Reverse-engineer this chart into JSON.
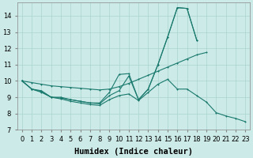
{
  "xlabel": "Humidex (Indice chaleur)",
  "background_color": "#cceae7",
  "grid_color": "#aad4d0",
  "line_color": "#1a7a6e",
  "x_values": [
    0,
    1,
    2,
    3,
    4,
    5,
    6,
    7,
    8,
    9,
    10,
    11,
    12,
    13,
    14,
    15,
    16,
    17,
    18,
    19,
    20,
    21,
    22,
    23
  ],
  "series_volatile": [
    10.0,
    9.5,
    9.4,
    9.0,
    9.0,
    8.85,
    8.75,
    8.65,
    8.65,
    9.3,
    10.4,
    10.45,
    8.85,
    9.5,
    11.0,
    12.7,
    14.5,
    14.45,
    12.5,
    null,
    null,
    null,
    null,
    null
  ],
  "series_mid": [
    10.0,
    9.5,
    9.35,
    9.0,
    8.95,
    8.85,
    8.75,
    8.65,
    8.6,
    9.1,
    9.4,
    10.3,
    8.85,
    9.5,
    11.0,
    12.7,
    14.5,
    14.45,
    12.5,
    null,
    null,
    null,
    null,
    null
  ],
  "series_bottom": [
    10.0,
    9.5,
    9.3,
    9.0,
    8.9,
    8.75,
    8.65,
    8.55,
    8.5,
    8.85,
    9.1,
    9.2,
    8.8,
    9.3,
    9.8,
    10.1,
    9.5,
    9.5,
    9.1,
    8.7,
    8.05,
    7.85,
    7.7,
    7.5
  ],
  "series_trend": [
    10.0,
    9.9,
    9.8,
    9.7,
    9.65,
    9.6,
    9.55,
    9.5,
    9.45,
    9.5,
    9.65,
    9.85,
    10.1,
    10.35,
    10.6,
    10.85,
    11.1,
    11.35,
    11.6,
    11.75,
    null,
    null,
    null,
    null
  ],
  "ylim": [
    7,
    14.8
  ],
  "xlim": [
    -0.5,
    23.5
  ],
  "yticks": [
    7,
    8,
    9,
    10,
    11,
    12,
    13,
    14
  ],
  "xticks": [
    0,
    1,
    2,
    3,
    4,
    5,
    6,
    7,
    8,
    9,
    10,
    11,
    12,
    13,
    14,
    15,
    16,
    17,
    18,
    19,
    20,
    21,
    22,
    23
  ],
  "tick_fontsize": 6,
  "xlabel_fontsize": 7.5
}
